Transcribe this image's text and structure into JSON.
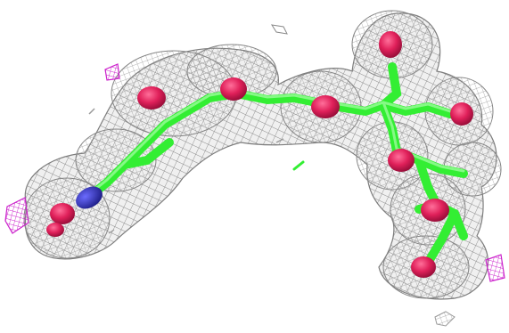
{
  "scene": {
    "kind": "electron-density-map-with-ligand",
    "colors": {
      "background": "#ffffff",
      "mesh": "#8a8a8a",
      "mesh_fill": "#d9d9d9",
      "carbon": "#33ee33",
      "oxygen": "#e0205a",
      "nitrogen": "#3030c0",
      "difference_mesh": "#cc22cc"
    }
  }
}
